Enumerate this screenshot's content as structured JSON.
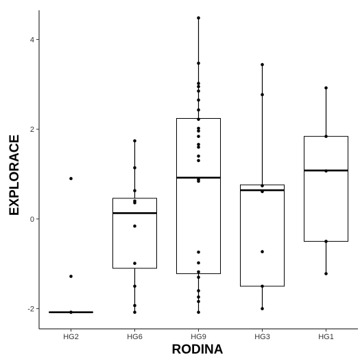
{
  "chart_data": {
    "type": "box",
    "xlabel": "RODINA",
    "ylabel": "EXPLORACE",
    "categories": [
      "HG2",
      "HG6",
      "HG9",
      "HG3",
      "HG1"
    ],
    "ylim": [
      -2.45,
      4.65
    ],
    "yticks": [
      -2,
      0,
      2,
      4
    ],
    "grid": false,
    "boxes": [
      {
        "category": "HG2",
        "q1": -2.08,
        "median": -2.08,
        "q3": -2.08,
        "whisker_low": -2.08,
        "whisker_high": -2.08,
        "points": [
          0.9,
          -1.28,
          -2.08,
          -2.08
        ]
      },
      {
        "category": "HG6",
        "q1": -1.1,
        "median": 0.13,
        "q3": 0.46,
        "whisker_low": -2.08,
        "whisker_high": 1.74,
        "points": [
          1.74,
          1.14,
          0.63,
          0.4,
          0.36,
          -0.16,
          -0.99,
          -1.5,
          -1.93,
          -2.08
        ]
      },
      {
        "category": "HG9",
        "q1": -1.22,
        "median": 0.92,
        "q3": 2.24,
        "whisker_low": -2.08,
        "whisker_high": 4.48,
        "points": [
          4.48,
          3.47,
          3.02,
          2.95,
          2.85,
          2.65,
          2.43,
          2.22,
          2.02,
          1.96,
          1.84,
          1.66,
          1.6,
          1.4,
          1.3,
          0.88,
          0.84,
          -0.74,
          -0.98,
          -1.18,
          -1.3,
          -1.6,
          -1.74,
          -1.84,
          -2.08
        ]
      },
      {
        "category": "HG3",
        "q1": -1.5,
        "median": 0.64,
        "q3": 0.76,
        "whisker_low": -2.0,
        "whisker_high": 3.44,
        "points": [
          3.44,
          2.77,
          0.74,
          0.61,
          -0.73,
          -1.5,
          -2.0
        ]
      },
      {
        "category": "HG1",
        "q1": -0.5,
        "median": 1.08,
        "q3": 1.84,
        "whisker_low": -1.22,
        "whisker_high": 2.92,
        "points": [
          2.92,
          1.84,
          1.07,
          -0.5,
          -1.22
        ]
      }
    ]
  }
}
